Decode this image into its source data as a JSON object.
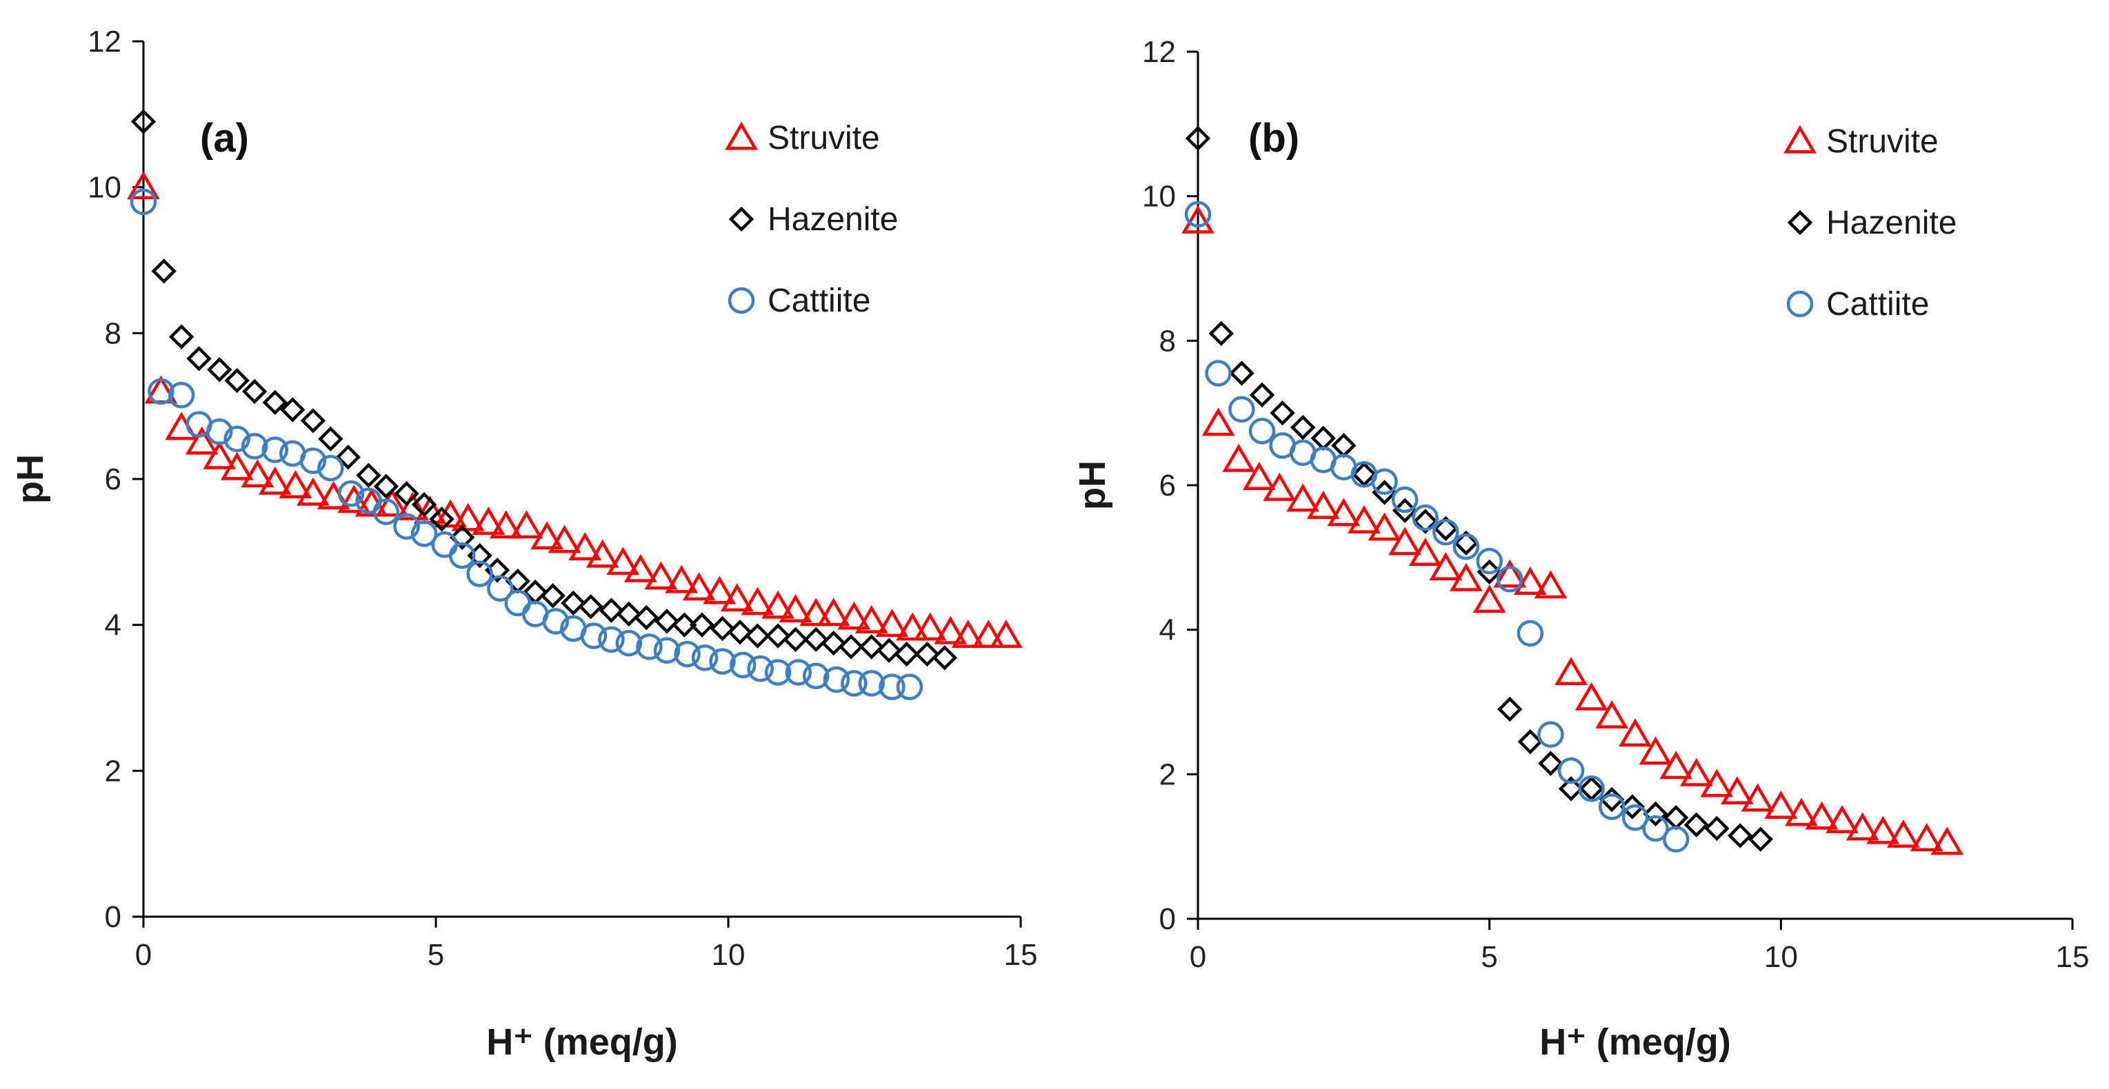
{
  "chart_data": [
    {
      "type": "scatter",
      "panel_label": "(a)",
      "xlabel": "H⁺ (meq/g)",
      "ylabel": "pH",
      "xlim": [
        0,
        15
      ],
      "ylim": [
        0,
        12
      ],
      "xticks": [
        0,
        5,
        10,
        15
      ],
      "yticks": [
        0,
        2,
        4,
        6,
        8,
        10,
        12
      ],
      "grid": false,
      "legend_position": "top-right",
      "series": [
        {
          "name": "Struvite",
          "marker": "triangle",
          "color": "#ff0000",
          "x": [
            0,
            0.3,
            0.65,
            1.0,
            1.3,
            1.6,
            1.95,
            2.25,
            2.6,
            2.9,
            3.25,
            3.6,
            3.9,
            4.25,
            4.6,
            4.9,
            5.25,
            5.55,
            5.9,
            6.2,
            6.55,
            6.9,
            7.2,
            7.55,
            7.85,
            8.2,
            8.5,
            8.85,
            9.2,
            9.5,
            9.85,
            10.15,
            10.5,
            10.85,
            11.15,
            11.5,
            11.8,
            12.15,
            12.45,
            12.8,
            13.15,
            13.45,
            13.8,
            14.1,
            14.45,
            14.75
          ],
          "y": [
            10.0,
            7.2,
            6.7,
            6.5,
            6.3,
            6.15,
            6.05,
            5.95,
            5.9,
            5.8,
            5.75,
            5.7,
            5.65,
            5.65,
            5.6,
            5.55,
            5.5,
            5.45,
            5.4,
            5.35,
            5.35,
            5.2,
            5.15,
            5.05,
            4.95,
            4.85,
            4.75,
            4.65,
            4.6,
            4.5,
            4.45,
            4.35,
            4.3,
            4.25,
            4.2,
            4.15,
            4.15,
            4.1,
            4.05,
            4.0,
            3.95,
            3.95,
            3.9,
            3.85,
            3.85,
            3.85
          ]
        },
        {
          "name": "Hazenite",
          "marker": "diamond",
          "color": "#000000",
          "x": [
            0,
            0.35,
            0.65,
            0.95,
            1.3,
            1.6,
            1.9,
            2.25,
            2.55,
            2.9,
            3.2,
            3.5,
            3.85,
            4.15,
            4.5,
            4.8,
            5.1,
            5.45,
            5.75,
            6.05,
            6.4,
            6.7,
            7.0,
            7.35,
            7.65,
            8.0,
            8.3,
            8.6,
            8.95,
            9.25,
            9.55,
            9.9,
            10.2,
            10.5,
            10.85,
            11.15,
            11.5,
            11.8,
            12.1,
            12.45,
            12.75,
            13.05,
            13.4,
            13.7
          ],
          "y": [
            10.9,
            8.85,
            7.95,
            7.65,
            7.5,
            7.35,
            7.2,
            7.05,
            6.95,
            6.8,
            6.55,
            6.3,
            6.05,
            5.9,
            5.8,
            5.65,
            5.45,
            5.2,
            4.95,
            4.75,
            4.6,
            4.45,
            4.4,
            4.3,
            4.25,
            4.2,
            4.15,
            4.1,
            4.05,
            4.0,
            4.0,
            3.95,
            3.9,
            3.85,
            3.85,
            3.8,
            3.8,
            3.75,
            3.7,
            3.7,
            3.65,
            3.6,
            3.6,
            3.55
          ]
        },
        {
          "name": "Cattiite",
          "marker": "circle",
          "color": "#3d7fc4",
          "x": [
            0,
            0.3,
            0.65,
            0.95,
            1.3,
            1.6,
            1.9,
            2.25,
            2.55,
            2.9,
            3.2,
            3.55,
            3.85,
            4.15,
            4.5,
            4.8,
            5.15,
            5.45,
            5.75,
            6.1,
            6.4,
            6.7,
            7.05,
            7.35,
            7.7,
            8.0,
            8.3,
            8.65,
            8.95,
            9.3,
            9.6,
            9.9,
            10.25,
            10.55,
            10.85,
            11.2,
            11.5,
            11.85,
            12.15,
            12.45,
            12.8,
            13.1
          ],
          "y": [
            9.8,
            7.2,
            7.15,
            6.75,
            6.65,
            6.55,
            6.45,
            6.4,
            6.35,
            6.25,
            6.15,
            5.8,
            5.7,
            5.55,
            5.35,
            5.25,
            5.1,
            4.95,
            4.7,
            4.5,
            4.3,
            4.15,
            4.05,
            3.95,
            3.85,
            3.8,
            3.75,
            3.7,
            3.65,
            3.6,
            3.55,
            3.5,
            3.45,
            3.4,
            3.35,
            3.35,
            3.3,
            3.25,
            3.2,
            3.2,
            3.15,
            3.15
          ]
        }
      ]
    },
    {
      "type": "scatter",
      "panel_label": "(b)",
      "xlabel": "H⁺ (meq/g)",
      "ylabel": "pH",
      "xlim": [
        0,
        15
      ],
      "ylim": [
        0,
        12
      ],
      "xticks": [
        0,
        5,
        10,
        15
      ],
      "yticks": [
        0,
        2,
        4,
        6,
        8,
        10,
        12
      ],
      "grid": false,
      "legend_position": "top-right",
      "series": [
        {
          "name": "Struvite",
          "marker": "triangle",
          "color": "#ff0000",
          "x": [
            0,
            0.35,
            0.7,
            1.05,
            1.4,
            1.8,
            2.15,
            2.5,
            2.85,
            3.2,
            3.55,
            3.9,
            4.25,
            4.6,
            5.0,
            5.35,
            5.7,
            6.05,
            6.4,
            6.75,
            7.1,
            7.5,
            7.85,
            8.2,
            8.55,
            8.9,
            9.25,
            9.6,
            10.0,
            10.35,
            10.7,
            11.05,
            11.4,
            11.75,
            12.1,
            12.5,
            12.85
          ],
          "y": [
            9.65,
            6.85,
            6.35,
            6.1,
            5.95,
            5.8,
            5.7,
            5.6,
            5.5,
            5.4,
            5.2,
            5.05,
            4.85,
            4.7,
            4.4,
            4.75,
            4.65,
            4.6,
            3.4,
            3.05,
            2.8,
            2.55,
            2.3,
            2.1,
            2.0,
            1.85,
            1.75,
            1.65,
            1.55,
            1.45,
            1.4,
            1.35,
            1.25,
            1.2,
            1.15,
            1.1,
            1.05
          ]
        },
        {
          "name": "Hazenite",
          "marker": "diamond",
          "color": "#000000",
          "x": [
            0,
            0.4,
            0.75,
            1.1,
            1.45,
            1.8,
            2.15,
            2.5,
            2.85,
            3.2,
            3.55,
            3.9,
            4.25,
            4.6,
            5.0,
            5.35,
            5.7,
            6.05,
            6.4,
            6.75,
            7.1,
            7.45,
            7.85,
            8.2,
            8.55,
            8.9,
            9.3,
            9.65
          ],
          "y": [
            10.8,
            8.1,
            7.55,
            7.25,
            7.0,
            6.8,
            6.65,
            6.55,
            6.15,
            5.9,
            5.65,
            5.5,
            5.4,
            5.2,
            4.8,
            2.9,
            2.45,
            2.15,
            1.8,
            1.8,
            1.65,
            1.55,
            1.45,
            1.4,
            1.3,
            1.25,
            1.15,
            1.1
          ]
        },
        {
          "name": "Cattiite",
          "marker": "circle",
          "color": "#3d7fc4",
          "x": [
            0,
            0.35,
            0.75,
            1.1,
            1.45,
            1.8,
            2.15,
            2.5,
            2.85,
            3.2,
            3.55,
            3.9,
            4.25,
            4.6,
            5.0,
            5.35,
            5.7,
            6.05,
            6.4,
            6.75,
            7.1,
            7.5,
            7.85,
            8.2
          ],
          "y": [
            9.75,
            7.55,
            7.05,
            6.75,
            6.55,
            6.45,
            6.35,
            6.25,
            6.15,
            6.05,
            5.8,
            5.55,
            5.35,
            5.15,
            4.95,
            4.7,
            3.95,
            2.55,
            2.05,
            1.8,
            1.55,
            1.4,
            1.25,
            1.1
          ]
        }
      ]
    }
  ]
}
